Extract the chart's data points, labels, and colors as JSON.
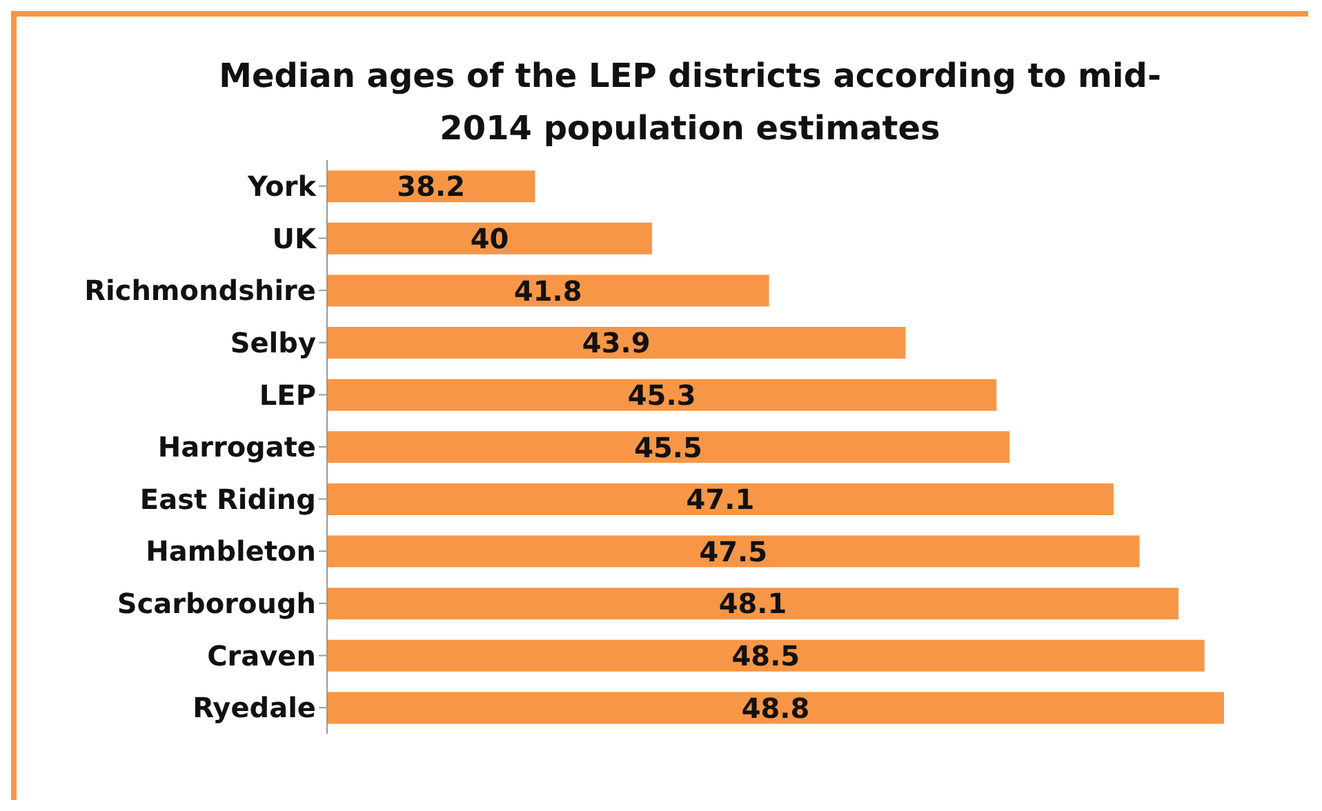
{
  "chart_data": {
    "type": "bar",
    "orientation": "horizontal",
    "title": "Median ages of the LEP districts according to mid-2014 population estimates",
    "categories": [
      "York",
      "UK",
      "Richmondshire",
      "Selby",
      "LEP",
      "Harrogate",
      "East Riding",
      "Hambleton",
      "Scarborough",
      "Craven",
      "Ryedale"
    ],
    "values": [
      38.2,
      40,
      41.8,
      43.9,
      45.3,
      45.5,
      47.1,
      47.5,
      48.1,
      48.5,
      48.8
    ],
    "color": "#f79646",
    "xlim": [
      35,
      48.8
    ],
    "data_labels": true,
    "tick_labels": "y"
  }
}
